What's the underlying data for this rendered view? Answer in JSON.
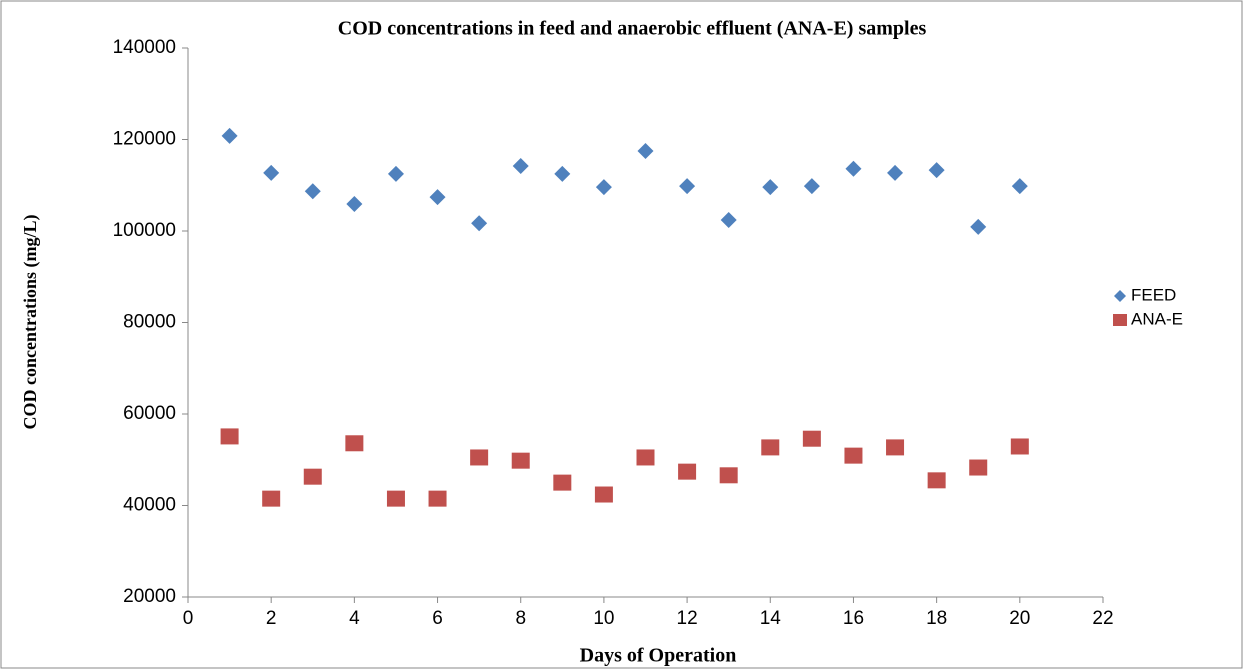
{
  "chart_data": {
    "type": "scatter",
    "title": "COD concentrations in feed and anaerobic effluent (ANA-E) samples",
    "x_label": "Days of Operation",
    "y_label": "COD concentrations (mg/L)",
    "xlim": [
      0,
      22
    ],
    "xticks": [
      0,
      2,
      4,
      6,
      8,
      10,
      12,
      14,
      16,
      18,
      20,
      22
    ],
    "ylim": [
      20000,
      140000
    ],
    "yticks": [
      20000,
      40000,
      60000,
      80000,
      100000,
      120000,
      140000
    ],
    "grid": false,
    "legend": "right",
    "x": [
      1,
      2,
      3,
      4,
      5,
      6,
      7,
      8,
      9,
      10,
      11,
      12,
      13,
      14,
      15,
      16,
      17,
      18,
      19,
      20
    ],
    "series": [
      {
        "name": "FEED",
        "color": "#4f81bd",
        "marker": "diamond",
        "values": [
          120800,
          112700,
          108700,
          105900,
          112500,
          107400,
          101700,
          114200,
          112500,
          109600,
          117500,
          109800,
          102400,
          109600,
          109800,
          113600,
          112700,
          113300,
          100900,
          109800
        ]
      },
      {
        "name": "ANA-E",
        "color": "#c0504d",
        "marker": "square",
        "values": [
          55100,
          41500,
          46300,
          53600,
          41500,
          41500,
          50500,
          49800,
          45000,
          42400,
          50500,
          47400,
          46600,
          52700,
          54600,
          50900,
          52700,
          45500,
          48300,
          52900
        ]
      }
    ]
  }
}
